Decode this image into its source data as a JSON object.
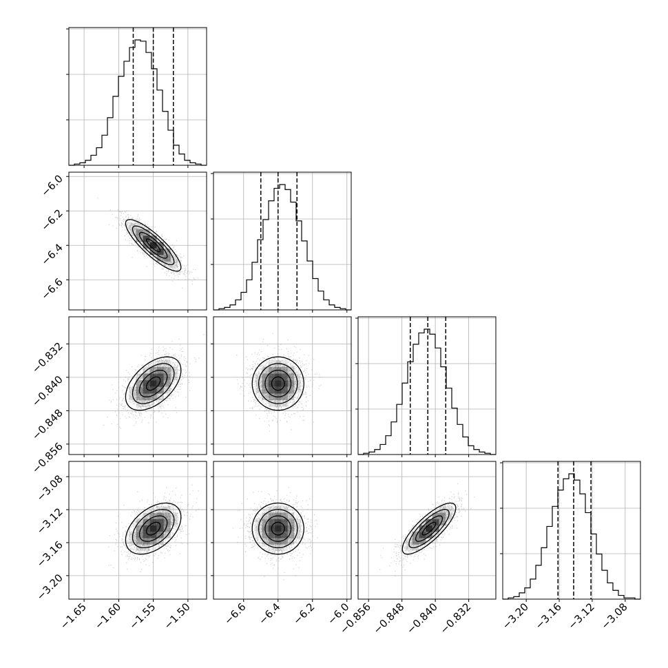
{
  "chart_data": {
    "type": "corner",
    "title": "",
    "parameters": [
      {
        "ticks": [
          -1.65,
          -1.6,
          -1.55,
          -1.5
        ],
        "tick_labels": [
          "−1.65",
          "−1.60",
          "−1.55",
          "−1.50"
        ],
        "range": [
          -1.672,
          -1.473
        ],
        "mean": -1.55,
        "sigma": 0.02,
        "quantiles": [
          -1.579,
          -1.55,
          -1.521
        ]
      },
      {
        "ticks": [
          -6.6,
          -6.4,
          -6.2,
          -6.0
        ],
        "tick_labels": [
          "−6.6",
          "−6.4",
          "−6.2",
          "−6.0"
        ],
        "range": [
          -6.775,
          -5.975
        ],
        "mean": -6.4,
        "sigma": 0.075,
        "quantiles": [
          -6.5,
          -6.4,
          -6.29
        ]
      },
      {
        "ticks": [
          -0.856,
          -0.848,
          -0.84,
          -0.832
        ],
        "tick_labels": [
          "−0.856",
          "−0.848",
          "−0.840",
          "−0.832"
        ],
        "range": [
          -0.8585,
          -0.8255
        ],
        "mean": -0.8415,
        "sigma": 0.0032,
        "quantiles": [
          -0.846,
          -0.8418,
          -0.8375
        ]
      },
      {
        "ticks": [
          -3.2,
          -3.16,
          -3.12,
          -3.08
        ],
        "tick_labels": [
          "−3.20",
          "−3.16",
          "−3.12",
          "−3.08"
        ],
        "range": [
          -3.2285,
          -3.0615
        ],
        "mean": -3.143,
        "sigma": 0.0155,
        "quantiles": [
          -3.1615,
          -3.1425,
          -3.1215
        ]
      }
    ],
    "correlations": [
      [
        1,
        -0.85,
        0.5,
        0.45
      ],
      [
        -0.85,
        1,
        0,
        0
      ],
      [
        0.5,
        0,
        1,
        0.8
      ],
      [
        0.45,
        0,
        0.8,
        1
      ]
    ],
    "diag_hist": [
      [
        0,
        0.01,
        0.02,
        0.04,
        0.08,
        0.14,
        0.24,
        0.38,
        0.55,
        0.71,
        0.83,
        0.94,
        1.0,
        0.99,
        0.9,
        0.77,
        0.6,
        0.43,
        0.28,
        0.16,
        0.09,
        0.04,
        0.02,
        0.01,
        0
      ],
      [
        0,
        0.01,
        0.02,
        0.04,
        0.08,
        0.14,
        0.24,
        0.38,
        0.56,
        0.72,
        0.87,
        0.97,
        1.0,
        0.96,
        0.86,
        0.71,
        0.55,
        0.39,
        0.25,
        0.15,
        0.08,
        0.04,
        0.02,
        0.01,
        0
      ],
      [
        0,
        0.01,
        0.02,
        0.04,
        0.08,
        0.15,
        0.26,
        0.4,
        0.57,
        0.74,
        0.88,
        0.97,
        1.0,
        0.96,
        0.85,
        0.7,
        0.53,
        0.37,
        0.24,
        0.14,
        0.07,
        0.04,
        0.02,
        0.01,
        0
      ],
      [
        0,
        0.01,
        0.02,
        0.05,
        0.09,
        0.16,
        0.27,
        0.41,
        0.58,
        0.74,
        0.87,
        0.96,
        1.0,
        0.95,
        0.84,
        0.69,
        0.52,
        0.36,
        0.23,
        0.13,
        0.07,
        0.03,
        0.01,
        0.01,
        0
      ]
    ],
    "contour_levels_sigma": [
      0.5,
      1.0,
      1.5,
      2.0
    ],
    "grid": true,
    "colors": {
      "points": "#aaaaaa",
      "contour": "#000000",
      "hist": "#000000",
      "grid": "#b0b0b0",
      "density": "#000000"
    }
  }
}
